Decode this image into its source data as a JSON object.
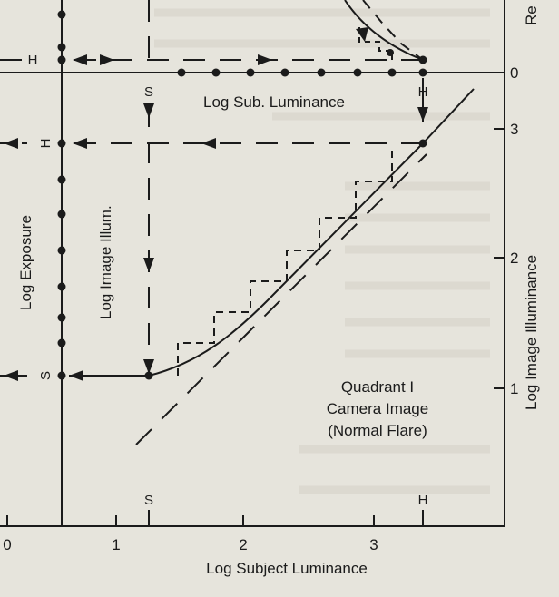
{
  "figure": {
    "quadrant_title_line1": "Quadrant I",
    "quadrant_title_line2": "Camera Image",
    "quadrant_title_line3": "(Normal Flare)",
    "x_axis_label": "Log Subject Luminance",
    "right_axis_label": "Log Image Illuminance",
    "right_axis_label_top": "Re",
    "log_sub_luminance_label": "Log Sub. Luminance",
    "log_image_illum_label": "Log Image Illum.",
    "log_exposure_label": "Log Exposure",
    "marker_shadow": "S",
    "marker_highlight": "H",
    "x_ticks": [
      "0",
      "1",
      "2",
      "3"
    ],
    "right_ticks": [
      "3",
      "2",
      "1"
    ],
    "upper_right_tick": "0"
  },
  "colors": {
    "paper": "#e6e4dc",
    "ink": "#1b1b1b"
  }
}
